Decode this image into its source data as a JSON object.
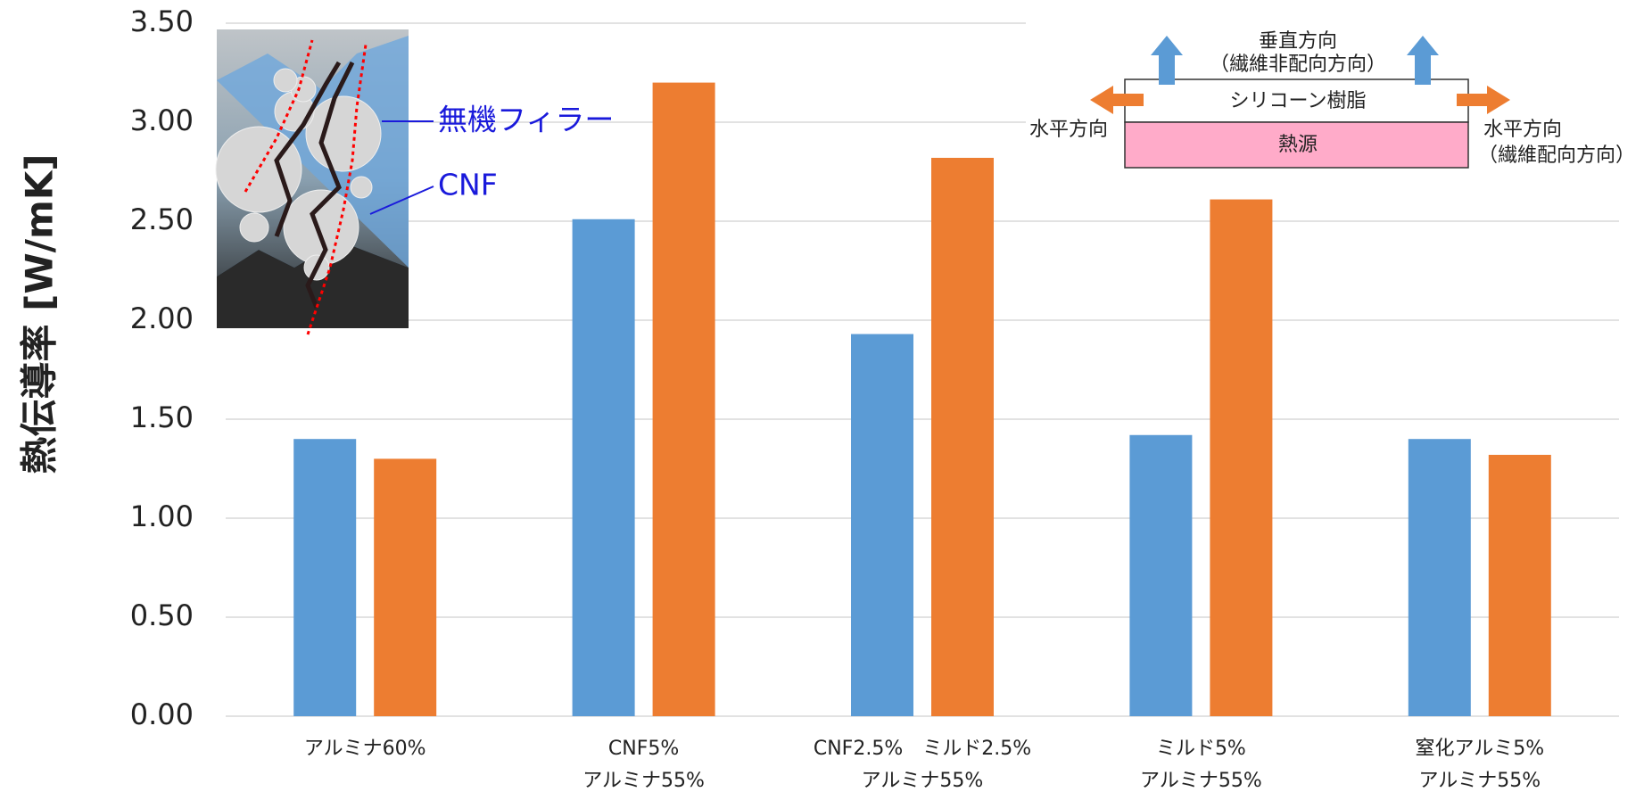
{
  "chart_data": {
    "type": "bar",
    "y_axis_label": "熱伝導率 [W/mK]",
    "categories": [
      "アルミナ60%",
      "CNF5%\nアルミナ55%",
      "CNF2.5%　ミルド2.5%\nアルミナ55%",
      "ミルド5%\nアルミナ55%",
      "窒化アルミ5%\nアルミナ55%"
    ],
    "series": [
      {
        "color": "#5b9bd5",
        "values": [
          1.4,
          2.51,
          1.93,
          1.42,
          1.4
        ]
      },
      {
        "color": "#ed7d31",
        "values": [
          1.3,
          3.2,
          2.82,
          2.61,
          1.32
        ]
      }
    ],
    "ylim": [
      0,
      3.5
    ],
    "yticks": [
      {
        "value": 0,
        "label": "0.00"
      },
      {
        "value": 0.5,
        "label": "0.50"
      },
      {
        "value": 1,
        "label": "1.00"
      },
      {
        "value": 1.5,
        "label": "1.50"
      },
      {
        "value": 2,
        "label": "2.00"
      },
      {
        "value": 2.5,
        "label": "2.50"
      },
      {
        "value": 3,
        "label": "3.00"
      },
      {
        "value": 3.5,
        "label": "3.50"
      }
    ],
    "grid": true,
    "annotations": {
      "inset_filler": "無機フィラー",
      "inset_cnf": "CNF",
      "vertical": "垂直方向",
      "vertical_note": "（繊維非配向方向）",
      "resin": "シリコーン樹脂",
      "heat_source": "熱源",
      "horizontal_left": "水平方向",
      "horizontal_right": "水平方向",
      "horizontal_note": "（繊維配向方向）"
    }
  }
}
